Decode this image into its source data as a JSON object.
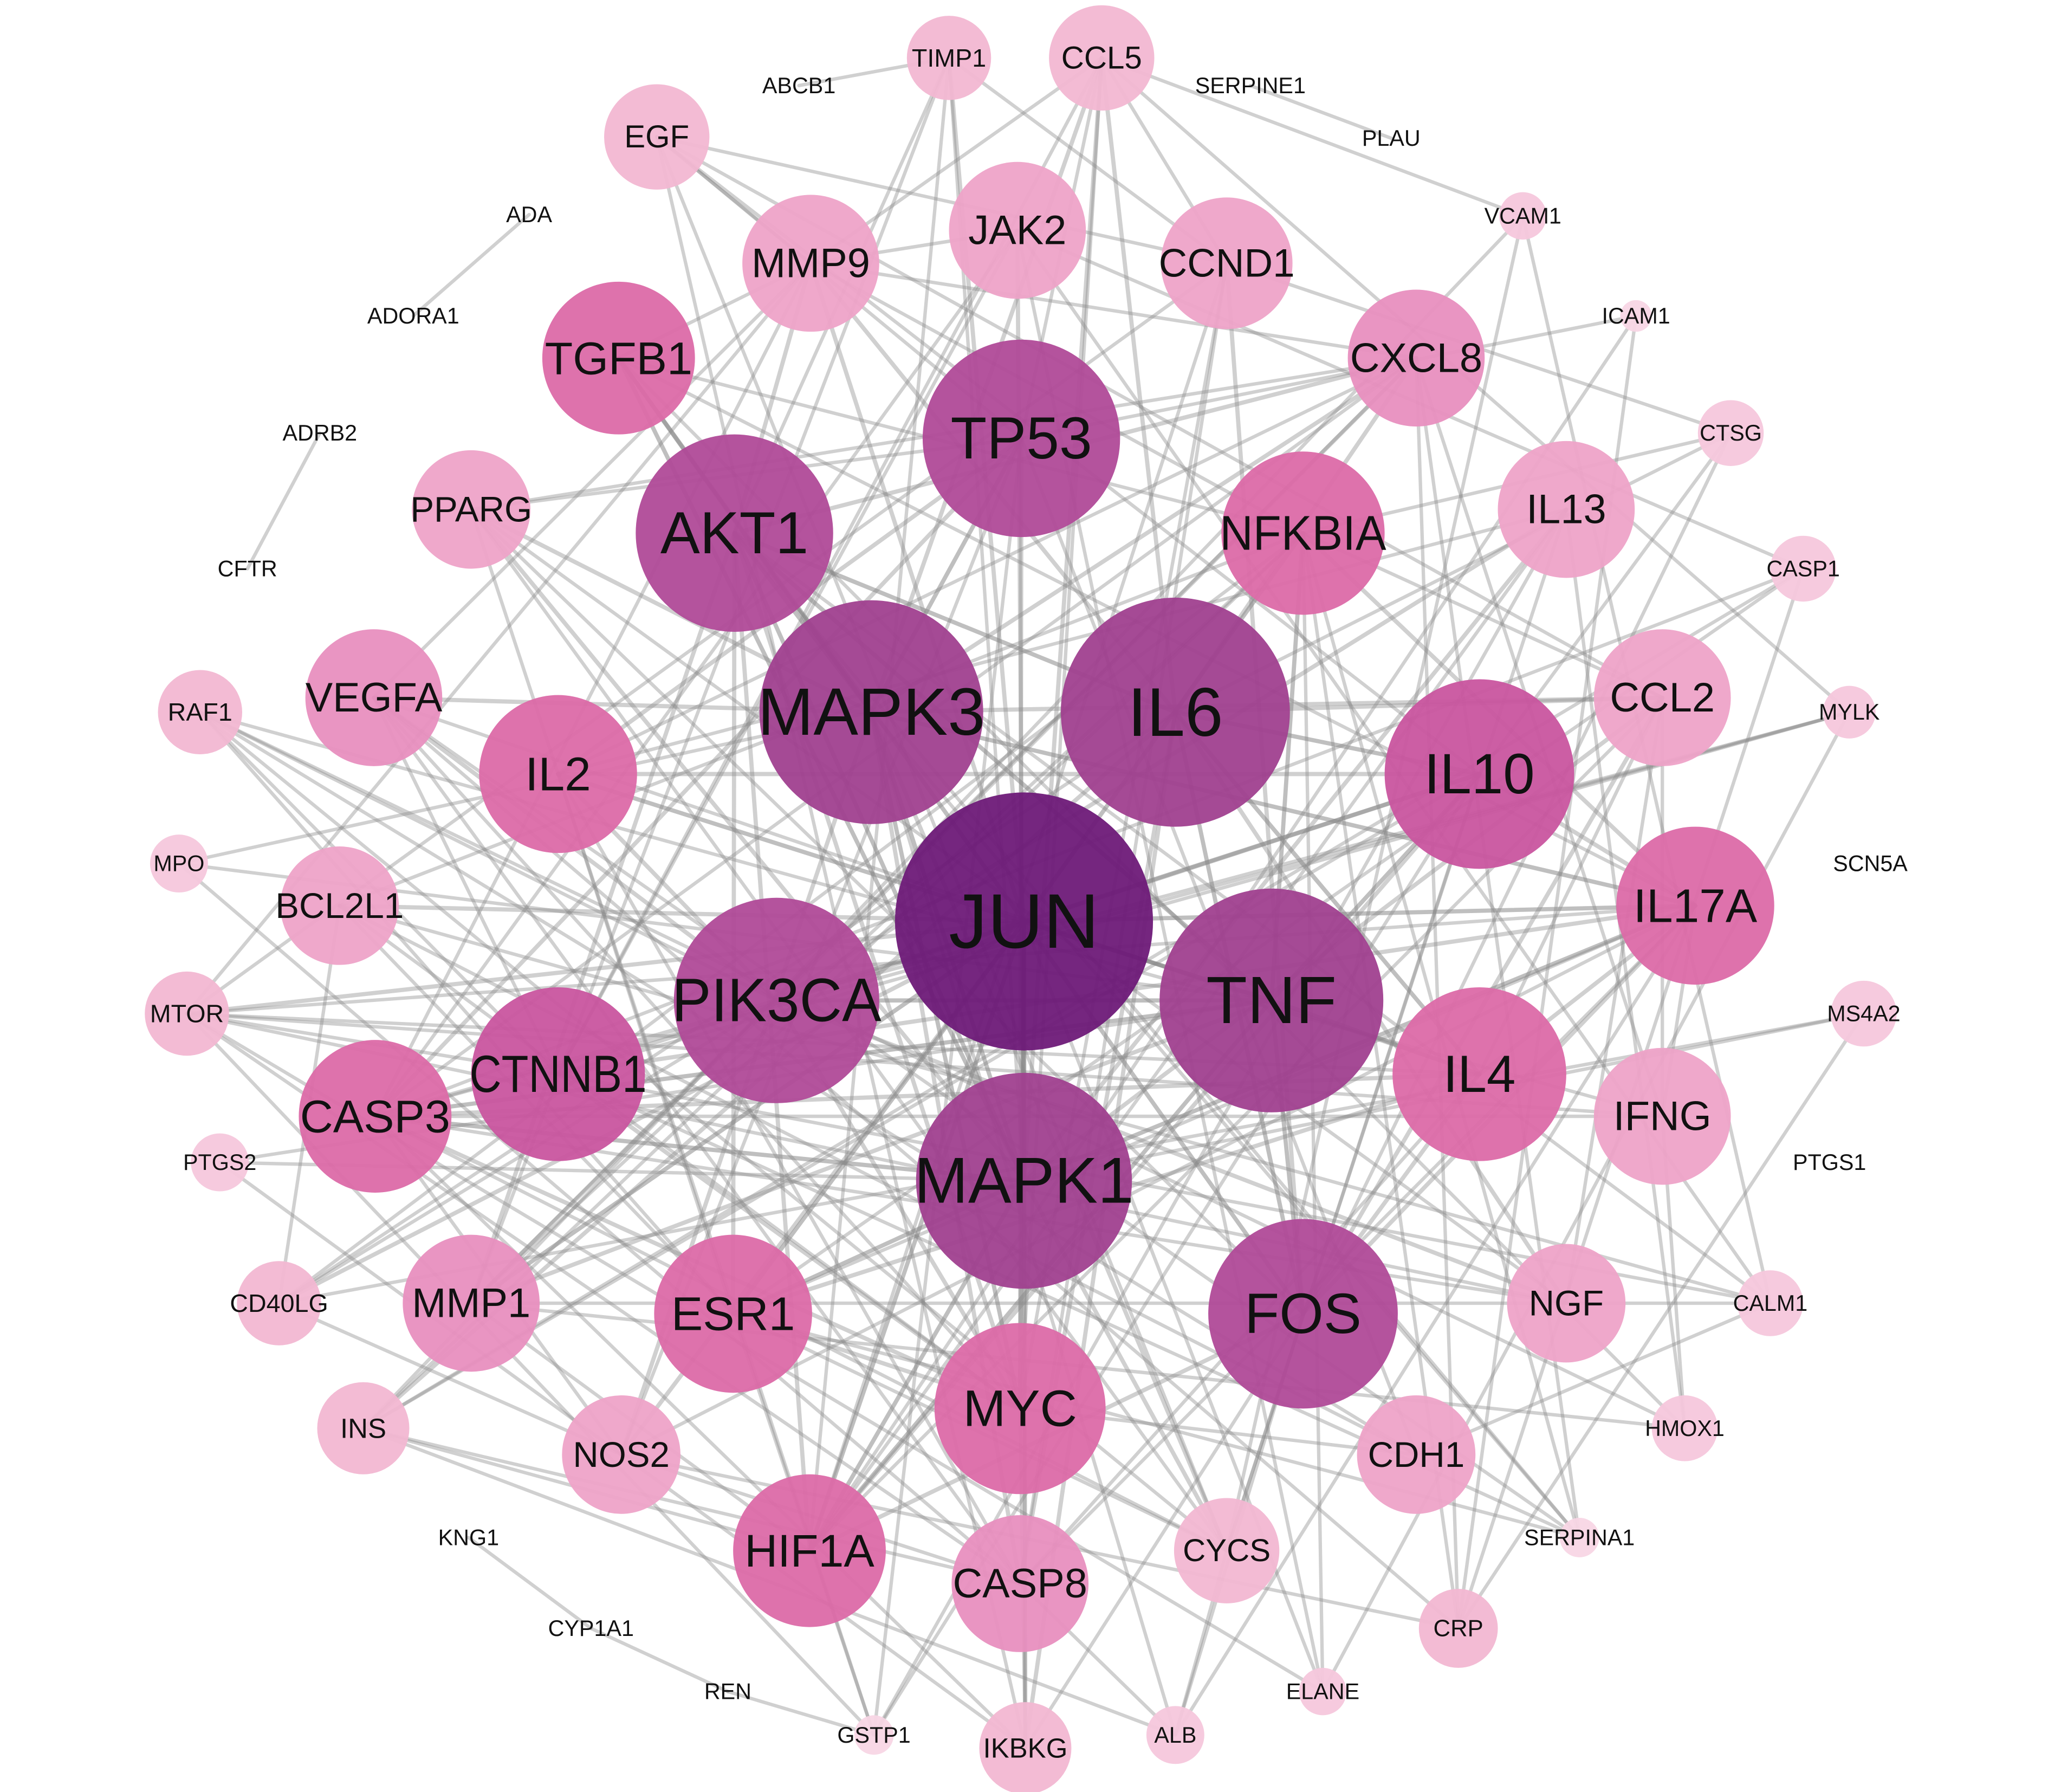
{
  "nodes": [
    {
      "label": "JUN"
    },
    {
      "label": "MAPK3"
    },
    {
      "label": "IL6"
    },
    {
      "label": "TNF"
    },
    {
      "label": "PIK3CA"
    },
    {
      "label": "MAPK1"
    },
    {
      "label": "AKT1"
    },
    {
      "label": "TP53"
    },
    {
      "label": "IL10"
    },
    {
      "label": "FOS"
    },
    {
      "label": "IL4"
    },
    {
      "label": "IL17A"
    },
    {
      "label": "NFKBIA"
    },
    {
      "label": "CTNNB1"
    },
    {
      "label": "CASP3"
    },
    {
      "label": "IL2"
    },
    {
      "label": "ESR1"
    },
    {
      "label": "MYC"
    },
    {
      "label": "HIF1A"
    },
    {
      "label": "CASP8"
    },
    {
      "label": "TGFB1"
    },
    {
      "label": "CXCL8"
    },
    {
      "label": "VEGFA"
    },
    {
      "label": "MMP1"
    },
    {
      "label": "IFNG"
    },
    {
      "label": "CCND1"
    },
    {
      "label": "JAK2"
    },
    {
      "label": "MMP9"
    },
    {
      "label": "IL13"
    },
    {
      "label": "CCL2"
    },
    {
      "label": "NGF"
    },
    {
      "label": "CDH1"
    },
    {
      "label": "NOS2"
    },
    {
      "label": "CYCS"
    },
    {
      "label": "BCL2L1"
    },
    {
      "label": "PPARG"
    },
    {
      "label": "EGF"
    },
    {
      "label": "CCL5"
    },
    {
      "label": "TIMP1"
    },
    {
      "label": "INS"
    },
    {
      "label": "CD40LG"
    },
    {
      "label": "IKBKG"
    },
    {
      "label": "CRP"
    },
    {
      "label": "RAF1"
    },
    {
      "label": "MTOR"
    },
    {
      "label": "PTGS2"
    },
    {
      "label": "MPO"
    },
    {
      "label": "CASP1"
    },
    {
      "label": "CTSG"
    },
    {
      "label": "MS4A2"
    },
    {
      "label": "CALM1"
    },
    {
      "label": "HMOX1"
    },
    {
      "label": "MYLK"
    },
    {
      "label": "ALB"
    },
    {
      "label": "ELANE"
    },
    {
      "label": "GSTP1"
    },
    {
      "label": "SERPINA1"
    },
    {
      "label": "VCAM1"
    },
    {
      "label": "ICAM1"
    },
    {
      "label": "ABCB1"
    },
    {
      "label": "SERPINE1"
    },
    {
      "label": "PLAU"
    },
    {
      "label": "ADA"
    },
    {
      "label": "ADORA1"
    },
    {
      "label": "ADRB2"
    },
    {
      "label": "CFTR"
    },
    {
      "label": "SCN5A"
    },
    {
      "label": "PTGS1"
    },
    {
      "label": "KNG1"
    },
    {
      "label": "CYP1A1"
    },
    {
      "label": "REN"
    }
  ]
}
